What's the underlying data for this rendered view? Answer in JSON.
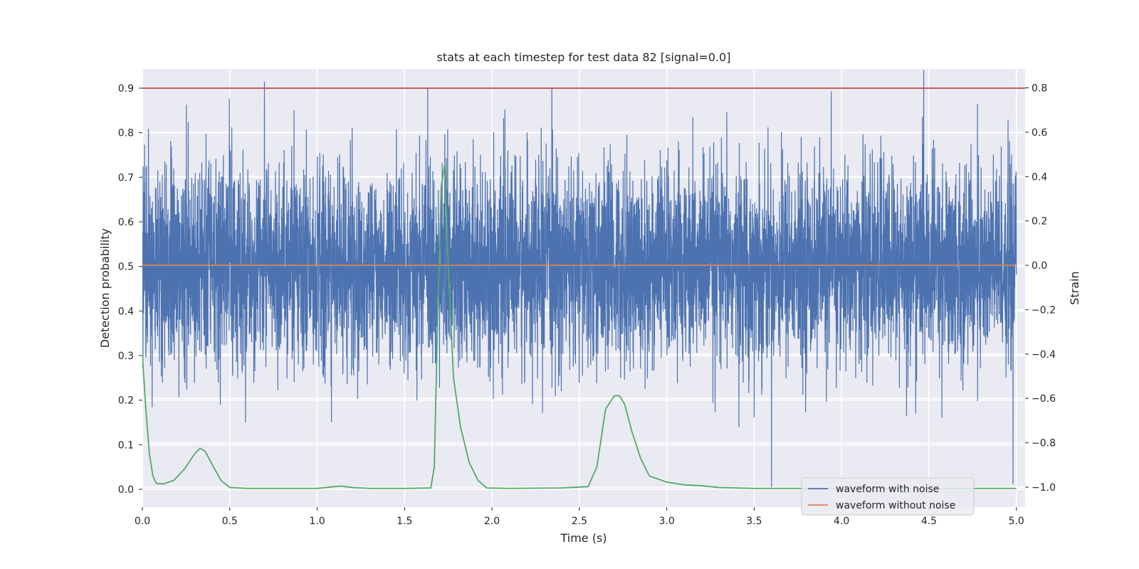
{
  "chart_data": {
    "type": "line",
    "title": "stats at each timestep for test data 82 [signal=0.0]",
    "xlabel": "Time (s)",
    "ylabel_left": "Detection probability",
    "ylabel_right": "Strain",
    "xlim": [
      0.0,
      5.05
    ],
    "ylim_left": [
      -0.04,
      0.943
    ],
    "ylim_right": [
      -1.09,
      0.885
    ],
    "x_ticks": [
      0.0,
      0.5,
      1.0,
      1.5,
      2.0,
      2.5,
      3.0,
      3.5,
      4.0,
      4.5,
      5.0
    ],
    "x_tick_labels": [
      "0.0",
      "0.5",
      "1.0",
      "1.5",
      "2.0",
      "2.5",
      "3.0",
      "3.5",
      "4.0",
      "4.5",
      "5.0"
    ],
    "y_left_ticks": [
      0.0,
      0.1,
      0.2,
      0.3,
      0.4,
      0.5,
      0.6,
      0.7,
      0.8,
      0.9
    ],
    "y_left_tick_labels": [
      "0.0",
      "0.1",
      "0.2",
      "0.3",
      "0.4",
      "0.5",
      "0.6",
      "0.7",
      "0.8",
      "0.9"
    ],
    "y_right_ticks": [
      -1.0,
      -0.8,
      -0.6,
      -0.4,
      -0.2,
      0.0,
      0.2,
      0.4,
      0.6,
      0.8
    ],
    "y_right_tick_labels": [
      "−1.0",
      "−0.8",
      "−0.6",
      "−0.4",
      "−0.2",
      "0.0",
      "0.2",
      "0.4",
      "0.6",
      "0.8"
    ],
    "grid": true,
    "legend_placement": "lower-right",
    "series": [
      {
        "name": "waveform with noise",
        "axis": "right",
        "color": "#4c72b0",
        "x_range": [
          0.0,
          5.0
        ],
        "value_range": [
          -1.0,
          0.88
        ],
        "description": "dense noisy strain signal centered near 0"
      },
      {
        "name": "waveform without noise",
        "axis": "right",
        "color": "#dd8452",
        "x": [
          0.0,
          5.0
        ],
        "values": [
          0.0,
          0.0
        ]
      },
      {
        "axis": "left",
        "color": "#55a868",
        "x": [
          0.0,
          0.02,
          0.04,
          0.06,
          0.08,
          0.12,
          0.18,
          0.24,
          0.3,
          0.33,
          0.36,
          0.4,
          0.45,
          0.5,
          0.6,
          0.8,
          1.0,
          1.1,
          1.14,
          1.2,
          1.3,
          1.5,
          1.65,
          1.67,
          1.69,
          1.71,
          1.73,
          1.75,
          1.78,
          1.82,
          1.87,
          1.92,
          1.97,
          2.1,
          2.4,
          2.55,
          2.6,
          2.65,
          2.7,
          2.73,
          2.76,
          2.8,
          2.85,
          2.9,
          3.0,
          3.1,
          3.2,
          3.3,
          3.5,
          4.0,
          4.5,
          5.0
        ],
        "values": [
          0.3,
          0.18,
          0.08,
          0.03,
          0.013,
          0.012,
          0.02,
          0.045,
          0.08,
          0.092,
          0.085,
          0.055,
          0.02,
          0.004,
          0.002,
          0.002,
          0.002,
          0.006,
          0.007,
          0.004,
          0.002,
          0.002,
          0.003,
          0.05,
          0.4,
          0.68,
          0.73,
          0.5,
          0.25,
          0.14,
          0.06,
          0.02,
          0.003,
          0.002,
          0.003,
          0.006,
          0.05,
          0.18,
          0.21,
          0.21,
          0.19,
          0.13,
          0.07,
          0.03,
          0.016,
          0.01,
          0.008,
          0.004,
          0.002,
          0.002,
          0.002,
          0.002
        ]
      },
      {
        "axis": "left",
        "color": "#c44e52",
        "x": [
          0.0,
          5.05
        ],
        "values": [
          0.9,
          0.9
        ]
      }
    ]
  }
}
